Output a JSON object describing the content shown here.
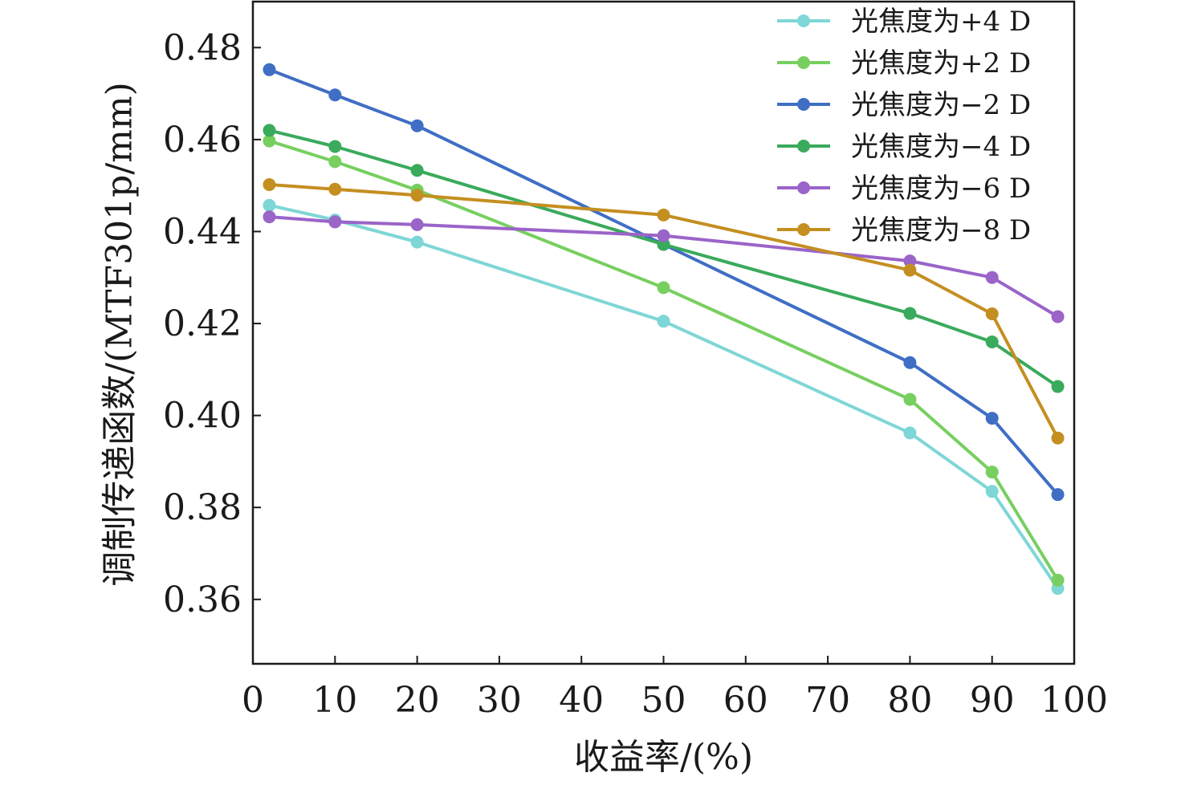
{
  "chart_data": {
    "type": "line",
    "xlabel": "收益率/(%)",
    "ylabel": "调制传递函数/(MTF301p/mm)",
    "xlim": [
      0,
      100
    ],
    "ylim": [
      0.346,
      0.49
    ],
    "x_ticks": [
      "0",
      "10",
      "20",
      "30",
      "40",
      "50",
      "60",
      "70",
      "80",
      "90",
      "100"
    ],
    "y_ticks": [
      "0.36",
      "0.38",
      "0.40",
      "0.42",
      "0.44",
      "0.46",
      "0.48"
    ],
    "x": [
      2,
      10,
      20,
      50,
      80,
      90,
      98
    ],
    "grid": false,
    "legend_position": "top-right",
    "series": [
      {
        "name": "光焦度为+4 D",
        "color": "#7fd6d6",
        "values": [
          0.4457,
          0.4425,
          0.4377,
          0.4205,
          0.3962,
          0.3835,
          0.3624
        ]
      },
      {
        "name": "光焦度为+2 D",
        "color": "#77cf5f",
        "values": [
          0.4597,
          0.4552,
          0.449,
          0.4278,
          0.4035,
          0.3877,
          0.3642
        ]
      },
      {
        "name": "光焦度为−2 D",
        "color": "#3f6ec4",
        "values": [
          0.4752,
          0.4697,
          0.463,
          0.4372,
          0.4115,
          0.3994,
          0.3828
        ]
      },
      {
        "name": "光焦度为−4 D",
        "color": "#3aaa5c",
        "values": [
          0.462,
          0.4585,
          0.4533,
          0.4372,
          0.4222,
          0.416,
          0.4063
        ]
      },
      {
        "name": "光焦度为−6 D",
        "color": "#9a64c9",
        "values": [
          0.4432,
          0.4421,
          0.4415,
          0.4391,
          0.4336,
          0.43,
          0.4215
        ]
      },
      {
        "name": "光焦度为−8 D",
        "color": "#c48f21",
        "values": [
          0.4502,
          0.4492,
          0.4479,
          0.4436,
          0.4316,
          0.4221,
          0.3951
        ]
      }
    ]
  }
}
